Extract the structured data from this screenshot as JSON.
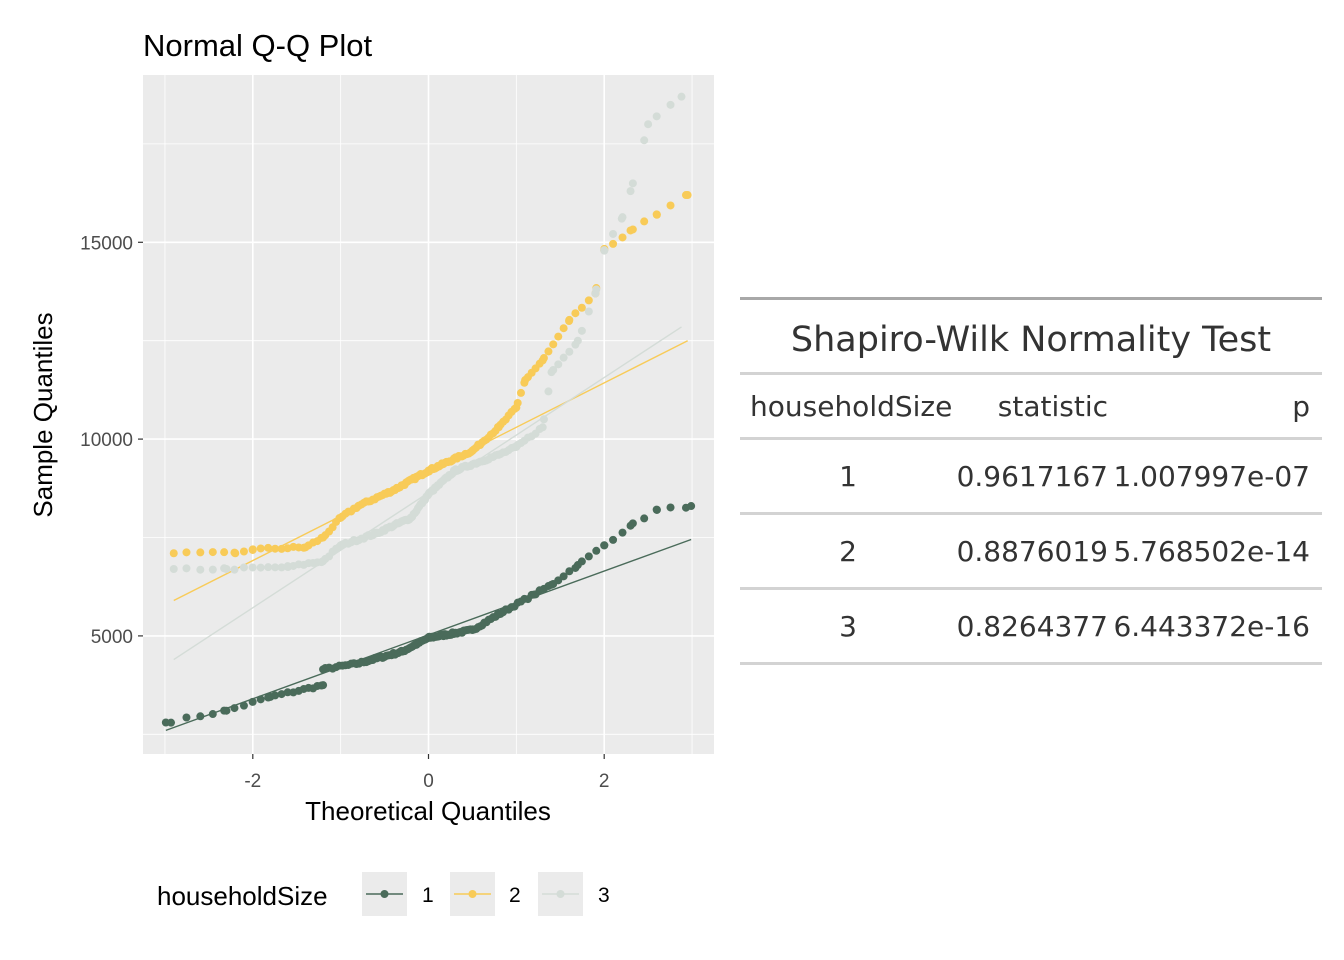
{
  "chart_data": {
    "type": "scatter",
    "title": "Normal Q-Q Plot",
    "xlabel": "Theoretical Quantiles",
    "ylabel": "Sample Quantiles",
    "xlim": [
      -3.25,
      3.25
    ],
    "ylim": [
      2000,
      19250
    ],
    "x_ticks": [
      -2,
      0,
      2
    ],
    "x_tick_labels": [
      "-2",
      "0",
      "2"
    ],
    "y_ticks": [
      5000,
      10000,
      15000
    ],
    "y_tick_labels": [
      "5000",
      "10000",
      "15000"
    ],
    "grid": true,
    "legend": {
      "title": "householdSize",
      "position": "bottom",
      "entries": [
        "1",
        "2",
        "3"
      ]
    },
    "series": [
      {
        "name": "1",
        "color": "#4a6b5a",
        "line": {
          "x": [
            -2.99,
            2.99
          ],
          "y": [
            2600,
            7450
          ]
        },
        "knots": [
          [
            -2.99,
            2800
          ],
          [
            -2.3,
            3100
          ],
          [
            -1.8,
            3450
          ],
          [
            -1.2,
            3750
          ],
          [
            -1.2,
            4150
          ],
          [
            -0.8,
            4300
          ],
          [
            -0.3,
            4600
          ],
          [
            0.0,
            4950
          ],
          [
            0.5,
            5150
          ],
          [
            0.8,
            5550
          ],
          [
            1.2,
            6050
          ],
          [
            1.4,
            6300
          ],
          [
            1.7,
            6800
          ],
          [
            2.0,
            7300
          ],
          [
            2.3,
            7800
          ],
          [
            2.6,
            8200
          ],
          [
            2.99,
            8300
          ]
        ]
      },
      {
        "name": "2",
        "color": "#f8cb58",
        "line": {
          "x": [
            -2.9,
            2.95
          ],
          "y": [
            5900,
            12500
          ]
        },
        "knots": [
          [
            -2.9,
            7100
          ],
          [
            -2.2,
            7100
          ],
          [
            -2.0,
            7200
          ],
          [
            -1.4,
            7250
          ],
          [
            -1.2,
            7500
          ],
          [
            -1.0,
            8000
          ],
          [
            -0.8,
            8300
          ],
          [
            -0.4,
            8700
          ],
          [
            0.0,
            9200
          ],
          [
            0.5,
            9700
          ],
          [
            0.8,
            10300
          ],
          [
            1.0,
            10800
          ],
          [
            1.1,
            11500
          ],
          [
            1.3,
            12000
          ],
          [
            1.6,
            13000
          ],
          [
            1.9,
            13700
          ],
          [
            2.0,
            14800
          ],
          [
            2.3,
            15300
          ],
          [
            2.6,
            15700
          ],
          [
            2.95,
            16200
          ]
        ]
      },
      {
        "name": "3",
        "color": "#d4dcd7",
        "line": {
          "x": [
            -2.9,
            2.88
          ],
          "y": [
            4400,
            12850
          ]
        },
        "knots": [
          [
            -2.9,
            6700
          ],
          [
            -2.3,
            6700
          ],
          [
            -1.6,
            6750
          ],
          [
            -1.2,
            6900
          ],
          [
            -1.0,
            7300
          ],
          [
            -0.6,
            7600
          ],
          [
            -0.2,
            8000
          ],
          [
            0.0,
            8600
          ],
          [
            0.3,
            9200
          ],
          [
            0.8,
            9600
          ],
          [
            1.0,
            9800
          ],
          [
            1.3,
            10300
          ],
          [
            1.4,
            11700
          ],
          [
            1.7,
            12500
          ],
          [
            1.9,
            13700
          ],
          [
            2.0,
            14800
          ],
          [
            2.2,
            15600
          ],
          [
            2.3,
            16300
          ],
          [
            2.5,
            18000
          ],
          [
            2.88,
            18700
          ]
        ]
      }
    ]
  },
  "table": {
    "title": "Shapiro-Wilk Normality Test",
    "headers": [
      "householdSize",
      "statistic",
      "p"
    ],
    "rows": [
      [
        "1",
        "0.9617167",
        "1.007997e-07"
      ],
      [
        "2",
        "0.8876019",
        "5.768502e-14"
      ],
      [
        "3",
        "0.8264377",
        "6.443372e-16"
      ]
    ]
  }
}
